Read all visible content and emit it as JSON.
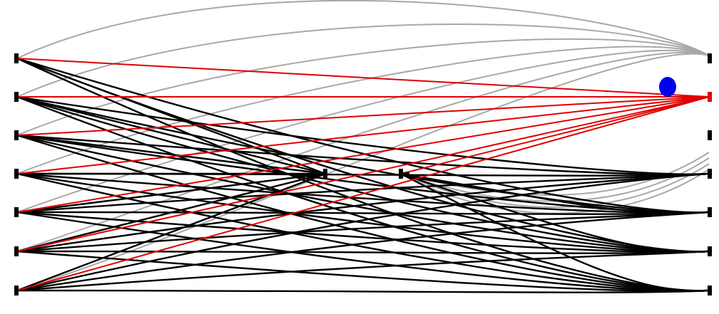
{
  "diagram": {
    "type": "bipartite-edge-bundle",
    "colors": {
      "background": "#ffffff",
      "gray_edge": "#a8a8a8",
      "black_edge": "#000000",
      "red_edge": "#e00000",
      "node_marker": "#000000",
      "highlight_marker": "#e00000",
      "cursor_dot": "#0000ee"
    },
    "left_nodes": [
      "L1",
      "L2",
      "L3",
      "L4",
      "L5",
      "L6",
      "L7"
    ],
    "right_nodes": [
      "R1",
      "R2",
      "R3",
      "R4",
      "R5",
      "R6",
      "R7"
    ],
    "middle_nodes": [
      "M1",
      "M2"
    ],
    "highlighted_node": "R2",
    "red_edges": [
      [
        "L1",
        "R2"
      ],
      [
        "L2",
        "R2"
      ],
      [
        "L3",
        "R2"
      ],
      [
        "L4",
        "R2"
      ],
      [
        "L5",
        "R2"
      ],
      [
        "L6",
        "R2"
      ],
      [
        "L7",
        "R2"
      ],
      [
        "M2",
        "R2"
      ]
    ],
    "gray_edges": [
      [
        "L1",
        "R1"
      ],
      [
        "L2",
        "R1"
      ],
      [
        "L3",
        "R1"
      ],
      [
        "L4",
        "R1"
      ],
      [
        "L5",
        "R1"
      ],
      [
        "L6",
        "R1"
      ],
      [
        "L7",
        "R1"
      ],
      [
        "M2",
        "R4"
      ],
      [
        "M2",
        "R4"
      ],
      [
        "M2",
        "R4"
      ],
      [
        "M2",
        "R4"
      ]
    ],
    "black_edges": [
      [
        "L1",
        "M1"
      ],
      [
        "L1",
        "R5"
      ],
      [
        "L1",
        "R6"
      ],
      [
        "L1",
        "R7"
      ],
      [
        "L2",
        "M1"
      ],
      [
        "L2",
        "R4"
      ],
      [
        "L2",
        "R5"
      ],
      [
        "L2",
        "R6"
      ],
      [
        "L2",
        "R7"
      ],
      [
        "L3",
        "M1"
      ],
      [
        "L3",
        "R4"
      ],
      [
        "L3",
        "R5"
      ],
      [
        "L3",
        "R6"
      ],
      [
        "L3",
        "R7"
      ],
      [
        "L4",
        "M1"
      ],
      [
        "L4",
        "R4"
      ],
      [
        "L4",
        "R5"
      ],
      [
        "L4",
        "R6"
      ],
      [
        "L4",
        "R7"
      ],
      [
        "L5",
        "M1"
      ],
      [
        "L5",
        "R4"
      ],
      [
        "L5",
        "R5"
      ],
      [
        "L5",
        "R6"
      ],
      [
        "L5",
        "R7"
      ],
      [
        "L6",
        "M1"
      ],
      [
        "L6",
        "R4"
      ],
      [
        "L6",
        "R5"
      ],
      [
        "L6",
        "R6"
      ],
      [
        "L6",
        "R7"
      ],
      [
        "L7",
        "M1"
      ],
      [
        "L7",
        "R4"
      ],
      [
        "L7",
        "R5"
      ],
      [
        "L7",
        "R6"
      ],
      [
        "L7",
        "R7"
      ],
      [
        "M2",
        "R5"
      ],
      [
        "M2",
        "R6"
      ],
      [
        "M2",
        "R7"
      ]
    ]
  }
}
